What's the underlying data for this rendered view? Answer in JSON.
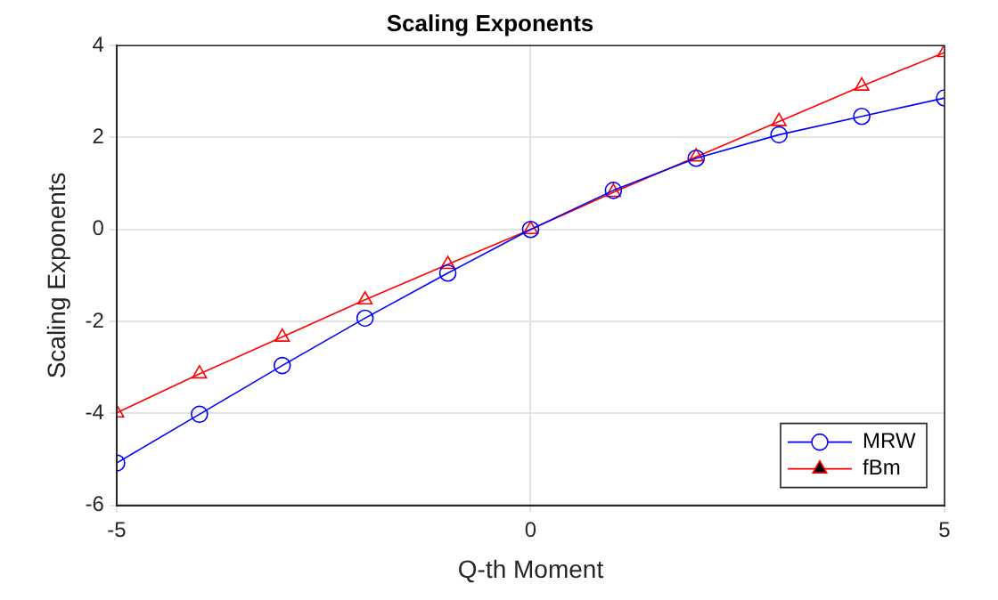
{
  "chart_data": {
    "type": "line",
    "title": "Scaling Exponents",
    "xlabel": "Q-th Moment",
    "ylabel": "Scaling Exponents",
    "x": [
      -5,
      -4,
      -3,
      -2,
      -1,
      0,
      1,
      2,
      3,
      4,
      5
    ],
    "series": [
      {
        "name": "MRW",
        "color": "#0000ff",
        "marker": "circle",
        "values": [
          -5.08,
          -4.02,
          -2.96,
          -1.93,
          -0.95,
          0,
          0.85,
          1.55,
          2.06,
          2.46,
          2.86
        ]
      },
      {
        "name": "fBm",
        "color": "#ff0000",
        "marker": "triangle",
        "values": [
          -3.99,
          -3.14,
          -2.34,
          -1.53,
          -0.76,
          0,
          0.81,
          1.58,
          2.35,
          3.12,
          3.85
        ]
      }
    ],
    "xlim": [
      -5,
      5
    ],
    "xticks": [
      -5,
      0,
      5
    ],
    "ylim": [
      -6,
      4
    ],
    "yticks": [
      -6,
      -4,
      -2,
      0,
      2,
      4
    ],
    "grid": true,
    "legend": "bottom right",
    "line_style": "solid"
  }
}
